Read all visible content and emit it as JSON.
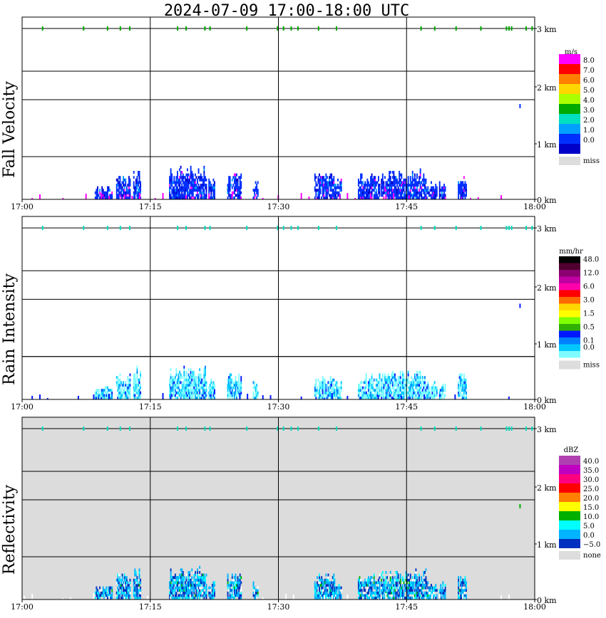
{
  "title": "2024-07-09  17:00-18:00 UTC",
  "chart_data": [
    {
      "type": "heatmap",
      "ylabel": "Fall Velocity",
      "x_ticks": [
        "17:00",
        "17:15",
        "17:30",
        "17:45",
        "18:00"
      ],
      "y_ticks": [
        "0 km",
        "1 km",
        "2 km",
        "3 km"
      ],
      "xlim_minutes": [
        0,
        60
      ],
      "ylim_km": [
        0,
        3.2
      ],
      "grid": true,
      "background": "#ffffff",
      "colorbar": {
        "unit": "m/s",
        "labels": [
          "8.0",
          "7.0",
          "6.0",
          "5.0",
          "4.0",
          "3.0",
          "2.0",
          "1.0",
          "0.0",
          "miss"
        ],
        "colors": [
          "#ff00ff",
          "#ff0000",
          "#ff7f00",
          "#ffd700",
          "#aaff00",
          "#00aa00",
          "#00e0c0",
          "#00a0ff",
          "#0030ff",
          "#0000c8"
        ],
        "miss_color": "#dddddd"
      },
      "marker_color": "#00aa00",
      "sparse_color": "#ff00ff",
      "dominant_color": "#0030e8"
    },
    {
      "type": "heatmap",
      "ylabel": "Rain Intensity",
      "x_ticks": [
        "17:00",
        "17:15",
        "17:30",
        "17:45",
        "18:00"
      ],
      "y_ticks": [
        "0 km",
        "1 km",
        "2 km",
        "3 km"
      ],
      "xlim_minutes": [
        0,
        60
      ],
      "ylim_km": [
        0,
        3.2
      ],
      "grid": true,
      "background": "#ffffff",
      "colorbar": {
        "unit": "mm/hr",
        "labels": [
          "48.0",
          "",
          "12.0",
          "",
          "6.0",
          "",
          "3.0",
          "",
          "1.5",
          "",
          "0.5",
          "",
          "0.1",
          "0.0",
          "miss"
        ],
        "colors": [
          "#000000",
          "#500030",
          "#8a0070",
          "#c000a0",
          "#ff00aa",
          "#ff0000",
          "#ff6a00",
          "#ffd700",
          "#ffff00",
          "#7fff00",
          "#30b000",
          "#0018ff",
          "#0080ff",
          "#00c8ff",
          "#7ffcff"
        ],
        "miss_color": "#dddddd"
      },
      "marker_color": "#00e0c0",
      "sparse_color": "#0018ff",
      "dominant_color": "#8ff6ff"
    },
    {
      "type": "heatmap",
      "ylabel": "Reflectivity",
      "x_ticks": [
        "17:00",
        "17:15",
        "17:30",
        "17:45",
        "18:00"
      ],
      "y_ticks": [
        "0 km",
        "1 km",
        "2 km",
        "3 km"
      ],
      "xlim_minutes": [
        0,
        60
      ],
      "ylim_km": [
        0,
        3.2
      ],
      "grid": true,
      "background": "#dcdcdc",
      "colorbar": {
        "unit": "dBZ",
        "labels": [
          "40.0",
          "35.0",
          "30.0",
          "25.0",
          "20.0",
          "15.0",
          "10.0",
          "5.0",
          "0.0",
          "−5.0",
          "none"
        ],
        "colors": [
          "#b040b0",
          "#c000c0",
          "#ff0080",
          "#ff0000",
          "#ff7f00",
          "#ffff00",
          "#00b000",
          "#00ffff",
          "#00b4ff",
          "#0030c0"
        ],
        "miss_color": "#dddddd"
      },
      "marker_color": "#00e0c0",
      "sparse_color": "#ffffff",
      "dominant_color": "#00b4ff"
    }
  ]
}
